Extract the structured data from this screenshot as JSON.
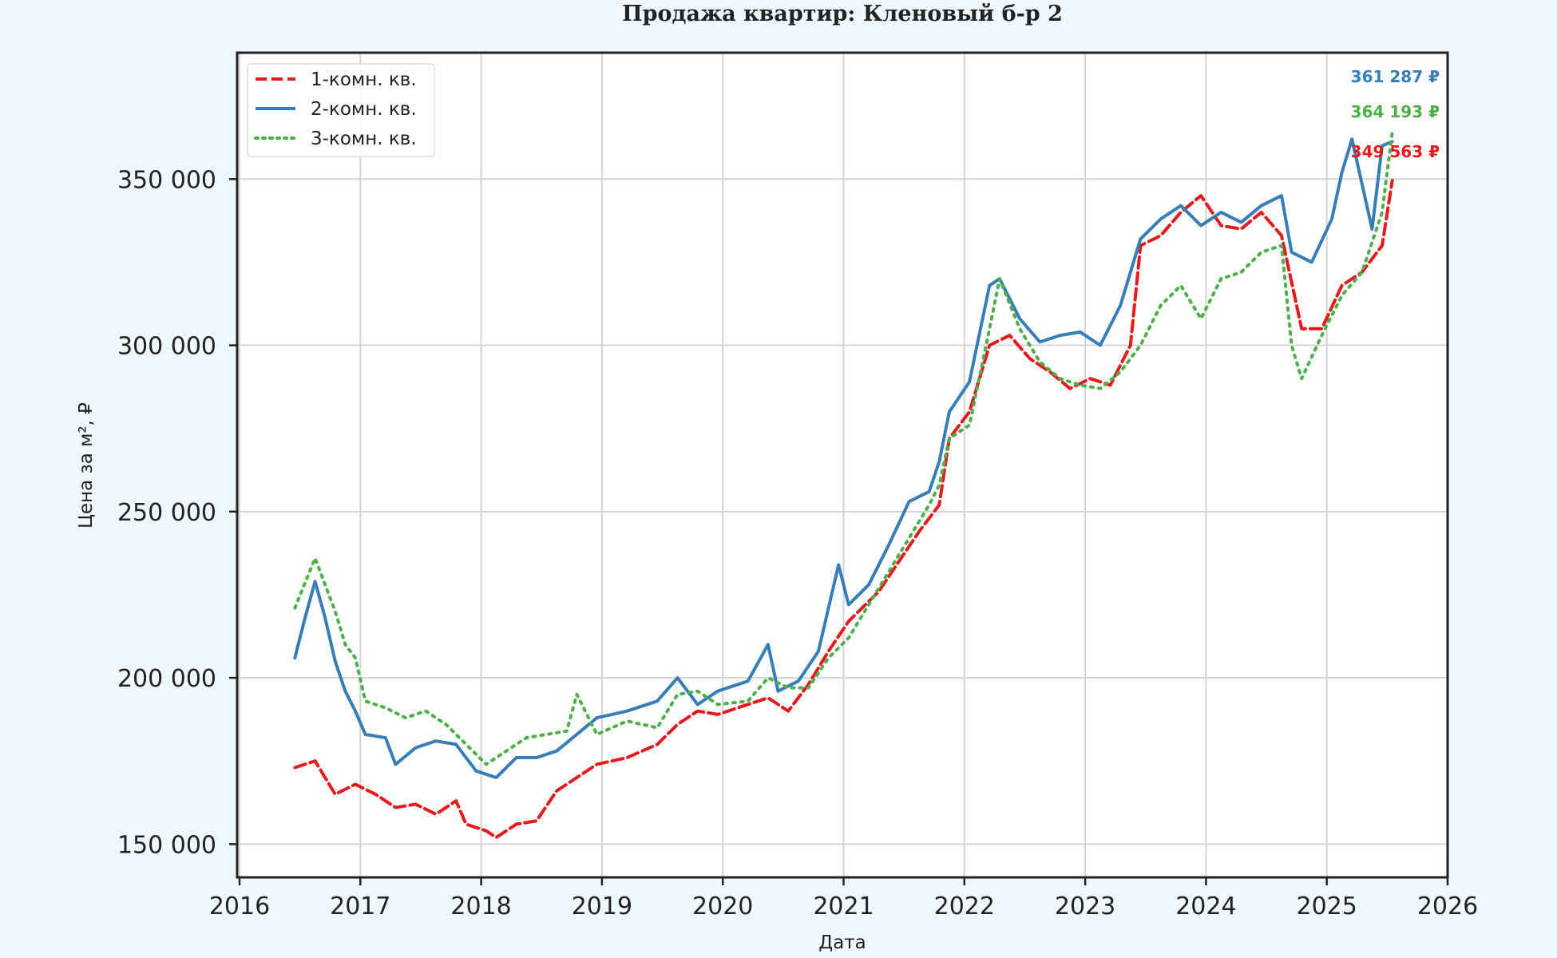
{
  "chart_data": {
    "type": "line",
    "title": "Продажа квартир: Кленовый б-р 2",
    "xlabel": "Дата",
    "ylabel": "Цена за м², ₽",
    "xlim": [
      2016,
      2026
    ],
    "ylim": [
      140000,
      388000
    ],
    "xticks": [
      "2016",
      "2017",
      "2018",
      "2019",
      "2020",
      "2021",
      "2022",
      "2023",
      "2024",
      "2025",
      "2026"
    ],
    "yticks": [
      150000,
      200000,
      250000,
      300000,
      350000
    ],
    "ytick_labels": [
      "150 000",
      "200 000",
      "250 000",
      "300 000",
      "350 000"
    ],
    "grid": true,
    "legend_position": "top-left",
    "series": [
      {
        "name": "1-комн. кв.",
        "color": "#e41a1c",
        "style": "dashed",
        "last_label": "349 563 ₽",
        "points": [
          [
            "2016-06",
            173000
          ],
          [
            "2016-08",
            175000
          ],
          [
            "2016-10",
            165000
          ],
          [
            "2016-12",
            168000
          ],
          [
            "2017-02",
            165000
          ],
          [
            "2017-04",
            161000
          ],
          [
            "2017-06",
            162000
          ],
          [
            "2017-08",
            159000
          ],
          [
            "2017-10",
            163000
          ],
          [
            "2017-11",
            156000
          ],
          [
            "2018-01",
            154000
          ],
          [
            "2018-02",
            152000
          ],
          [
            "2018-04",
            156000
          ],
          [
            "2018-06",
            157000
          ],
          [
            "2018-08",
            166000
          ],
          [
            "2018-10",
            170000
          ],
          [
            "2018-12",
            174000
          ],
          [
            "2019-03",
            176000
          ],
          [
            "2019-06",
            180000
          ],
          [
            "2019-08",
            186000
          ],
          [
            "2019-10",
            190000
          ],
          [
            "2019-12",
            189000
          ],
          [
            "2020-03",
            192000
          ],
          [
            "2020-05",
            194000
          ],
          [
            "2020-07",
            190000
          ],
          [
            "2020-09",
            198000
          ],
          [
            "2020-11",
            208000
          ],
          [
            "2021-01",
            217000
          ],
          [
            "2021-04",
            226000
          ],
          [
            "2021-06",
            235000
          ],
          [
            "2021-08",
            244000
          ],
          [
            "2021-10",
            252000
          ],
          [
            "2021-11",
            272000
          ],
          [
            "2022-01",
            280000
          ],
          [
            "2022-03",
            300000
          ],
          [
            "2022-05",
            303000
          ],
          [
            "2022-07",
            296000
          ],
          [
            "2022-09",
            292000
          ],
          [
            "2022-11",
            287000
          ],
          [
            "2023-01",
            290000
          ],
          [
            "2023-03",
            288000
          ],
          [
            "2023-05",
            300000
          ],
          [
            "2023-06",
            330000
          ],
          [
            "2023-08",
            333000
          ],
          [
            "2023-10",
            340000
          ],
          [
            "2023-12",
            345000
          ],
          [
            "2024-02",
            336000
          ],
          [
            "2024-04",
            335000
          ],
          [
            "2024-06",
            340000
          ],
          [
            "2024-08",
            333000
          ],
          [
            "2024-10",
            305000
          ],
          [
            "2024-12",
            305000
          ],
          [
            "2025-02",
            318000
          ],
          [
            "2025-04",
            322000
          ],
          [
            "2025-06",
            330000
          ],
          [
            "2025-07",
            349563
          ]
        ]
      },
      {
        "name": "2-комн. кв.",
        "color": "#377eb8",
        "style": "solid",
        "last_label": "361 287 ₽",
        "points": [
          [
            "2016-06",
            206000
          ],
          [
            "2016-07",
            218000
          ],
          [
            "2016-08",
            229000
          ],
          [
            "2016-09",
            218000
          ],
          [
            "2016-10",
            205000
          ],
          [
            "2016-11",
            196000
          ],
          [
            "2016-12",
            190000
          ],
          [
            "2017-01",
            183000
          ],
          [
            "2017-03",
            182000
          ],
          [
            "2017-04",
            174000
          ],
          [
            "2017-06",
            179000
          ],
          [
            "2017-08",
            181000
          ],
          [
            "2017-10",
            180000
          ],
          [
            "2017-12",
            172000
          ],
          [
            "2018-02",
            170000
          ],
          [
            "2018-04",
            176000
          ],
          [
            "2018-06",
            176000
          ],
          [
            "2018-08",
            178000
          ],
          [
            "2018-10",
            183000
          ],
          [
            "2018-12",
            188000
          ],
          [
            "2019-03",
            190000
          ],
          [
            "2019-06",
            193000
          ],
          [
            "2019-08",
            200000
          ],
          [
            "2019-10",
            192000
          ],
          [
            "2019-12",
            196000
          ],
          [
            "2020-03",
            199000
          ],
          [
            "2020-05",
            210000
          ],
          [
            "2020-06",
            196000
          ],
          [
            "2020-08",
            199000
          ],
          [
            "2020-10",
            208000
          ],
          [
            "2020-12",
            234000
          ],
          [
            "2021-01",
            222000
          ],
          [
            "2021-03",
            228000
          ],
          [
            "2021-05",
            240000
          ],
          [
            "2021-07",
            253000
          ],
          [
            "2021-09",
            256000
          ],
          [
            "2021-10",
            265000
          ],
          [
            "2021-11",
            280000
          ],
          [
            "2022-01",
            289000
          ],
          [
            "2022-03",
            318000
          ],
          [
            "2022-04",
            320000
          ],
          [
            "2022-06",
            308000
          ],
          [
            "2022-08",
            301000
          ],
          [
            "2022-10",
            303000
          ],
          [
            "2022-12",
            304000
          ],
          [
            "2023-02",
            300000
          ],
          [
            "2023-04",
            312000
          ],
          [
            "2023-06",
            332000
          ],
          [
            "2023-08",
            338000
          ],
          [
            "2023-10",
            342000
          ],
          [
            "2023-12",
            336000
          ],
          [
            "2024-02",
            340000
          ],
          [
            "2024-04",
            337000
          ],
          [
            "2024-06",
            342000
          ],
          [
            "2024-08",
            345000
          ],
          [
            "2024-09",
            328000
          ],
          [
            "2024-11",
            325000
          ],
          [
            "2025-01",
            338000
          ],
          [
            "2025-02",
            352000
          ],
          [
            "2025-03",
            362000
          ],
          [
            "2025-05",
            335000
          ],
          [
            "2025-06",
            360000
          ],
          [
            "2025-07",
            361287
          ]
        ]
      },
      {
        "name": "3-комн. кв.",
        "color": "#4daf4a",
        "style": "dotted",
        "last_label": "364 193 ₽",
        "points": [
          [
            "2016-06",
            221000
          ],
          [
            "2016-08",
            236000
          ],
          [
            "2016-09",
            228000
          ],
          [
            "2016-10",
            220000
          ],
          [
            "2016-11",
            210000
          ],
          [
            "2016-12",
            206000
          ],
          [
            "2017-01",
            193000
          ],
          [
            "2017-03",
            191000
          ],
          [
            "2017-05",
            188000
          ],
          [
            "2017-07",
            190000
          ],
          [
            "2017-09",
            186000
          ],
          [
            "2017-11",
            180000
          ],
          [
            "2018-01",
            174000
          ],
          [
            "2018-03",
            178000
          ],
          [
            "2018-05",
            182000
          ],
          [
            "2018-07",
            183000
          ],
          [
            "2018-09",
            184000
          ],
          [
            "2018-10",
            195000
          ],
          [
            "2018-12",
            183000
          ],
          [
            "2019-03",
            187000
          ],
          [
            "2019-06",
            185000
          ],
          [
            "2019-08",
            195000
          ],
          [
            "2019-10",
            196000
          ],
          [
            "2019-12",
            192000
          ],
          [
            "2020-03",
            193000
          ],
          [
            "2020-05",
            200000
          ],
          [
            "2020-07",
            197000
          ],
          [
            "2020-09",
            197000
          ],
          [
            "2020-11",
            206000
          ],
          [
            "2021-01",
            212000
          ],
          [
            "2021-03",
            222000
          ],
          [
            "2021-05",
            232000
          ],
          [
            "2021-07",
            242000
          ],
          [
            "2021-09",
            252000
          ],
          [
            "2021-10",
            258000
          ],
          [
            "2021-11",
            272000
          ],
          [
            "2022-01",
            276000
          ],
          [
            "2022-03",
            305000
          ],
          [
            "2022-04",
            320000
          ],
          [
            "2022-06",
            305000
          ],
          [
            "2022-08",
            295000
          ],
          [
            "2022-10",
            290000
          ],
          [
            "2022-12",
            288000
          ],
          [
            "2023-02",
            287000
          ],
          [
            "2023-04",
            292000
          ],
          [
            "2023-06",
            300000
          ],
          [
            "2023-08",
            312000
          ],
          [
            "2023-10",
            318000
          ],
          [
            "2023-12",
            308000
          ],
          [
            "2024-02",
            320000
          ],
          [
            "2024-04",
            322000
          ],
          [
            "2024-06",
            328000
          ],
          [
            "2024-08",
            330000
          ],
          [
            "2024-09",
            300000
          ],
          [
            "2024-10",
            290000
          ],
          [
            "2024-12",
            303000
          ],
          [
            "2025-02",
            315000
          ],
          [
            "2025-04",
            322000
          ],
          [
            "2025-06",
            340000
          ],
          [
            "2025-07",
            364193
          ]
        ]
      }
    ]
  }
}
